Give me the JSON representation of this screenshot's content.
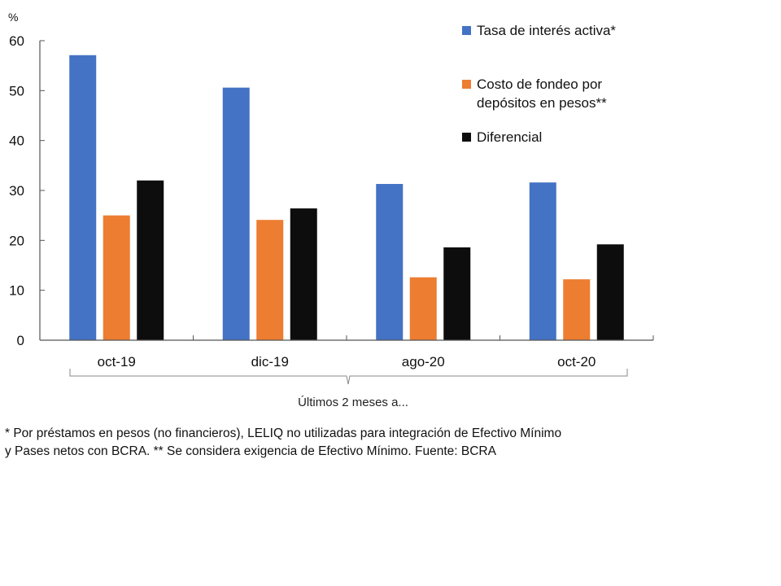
{
  "chart_data": {
    "type": "bar",
    "title": "",
    "xlabel": "Últimos 2 meses a...",
    "ylabel": "%",
    "ylim": [
      0,
      60
    ],
    "yticks": [
      0,
      10,
      20,
      30,
      40,
      50,
      60
    ],
    "grid": false,
    "legend_position": "top-right",
    "categories": [
      "oct-19",
      "dic-19",
      "ago-20",
      "oct-20"
    ],
    "series": [
      {
        "name": "Tasa de interés activa*",
        "color": "#4472c4",
        "values": [
          57.1,
          50.6,
          31.3,
          31.6
        ]
      },
      {
        "name": "Costo de fondeo por depósitos en pesos**",
        "color": "#ed7d31",
        "values": [
          25.0,
          24.1,
          12.6,
          12.2
        ]
      },
      {
        "name": "Diferencial",
        "color": "#0d0d0d",
        "values": [
          32.0,
          26.4,
          18.6,
          19.2
        ]
      }
    ]
  },
  "legend": {
    "items": [
      {
        "lines": [
          "Tasa de interés activa*"
        ]
      },
      {
        "lines": [
          "Costo de fondeo por",
          "depósitos en pesos**"
        ]
      },
      {
        "lines": [
          "Diferencial"
        ]
      }
    ]
  },
  "footnote": {
    "line1": "* Por préstamos en pesos (no financieros), LELIQ no utilizadas para integración de Efectivo Mínimo",
    "line2": "y Pases netos con BCRA. ** Se considera exigencia de Efectivo Mínimo. Fuente: BCRA"
  }
}
